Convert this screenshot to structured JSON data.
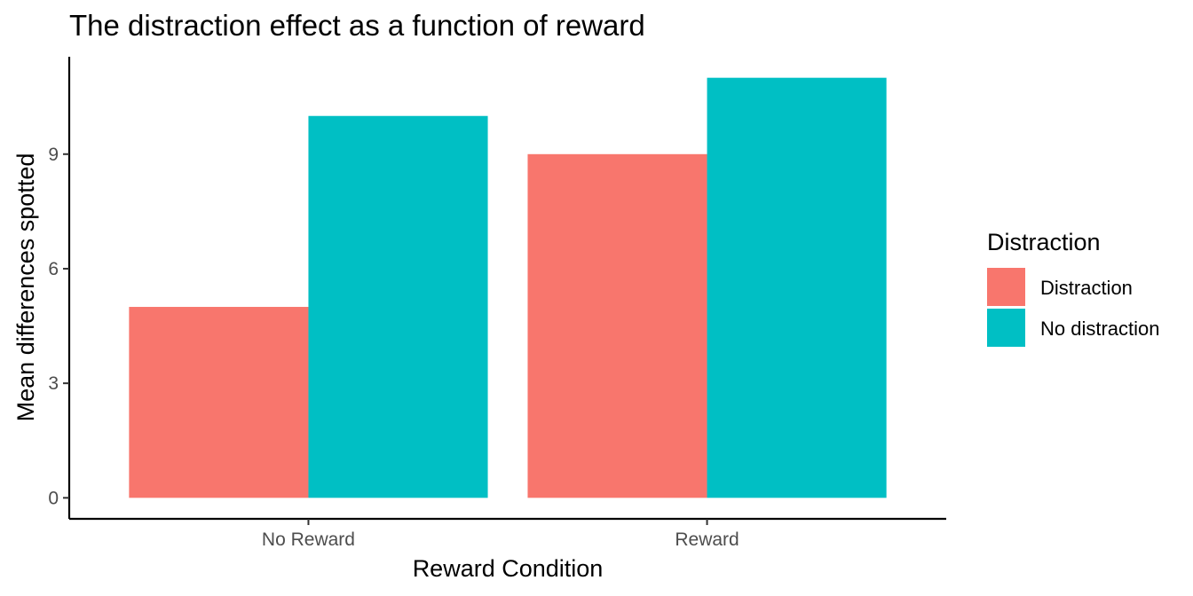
{
  "chart_data": {
    "type": "bar",
    "title": "The distraction effect as a function of reward",
    "xlabel": "Reward Condition",
    "ylabel": "Mean differences spotted",
    "categories": [
      "No Reward",
      "Reward"
    ],
    "series": [
      {
        "name": "Distraction",
        "values": [
          5,
          9
        ],
        "color": "#F8766D"
      },
      {
        "name": "No distraction",
        "values": [
          10,
          11
        ],
        "color": "#00BFC4"
      }
    ],
    "yticks": [
      0,
      3,
      6,
      9
    ],
    "ylim": [
      -0.55,
      11.55
    ],
    "legend": {
      "title": "Distraction",
      "position": "right"
    },
    "grid": false
  }
}
